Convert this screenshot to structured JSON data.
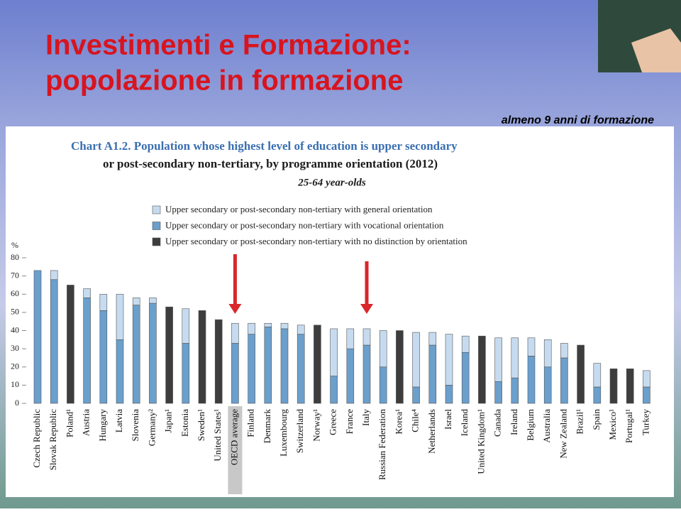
{
  "slide": {
    "title_lines": [
      "Investimenti e Formazione:",
      "popolazione in formazione"
    ],
    "note": "almeno 9 anni di formazione"
  },
  "chart_data": {
    "type": "bar",
    "stacked": true,
    "title_lines": [
      "Chart A1.2. Population whose highest level of education is upper secondary",
      "or post-secondary non-tertiary, by programme orientation (2012)"
    ],
    "subtitle": "25-64 year-olds",
    "y_label": "%",
    "categories": [
      "Czech Republic",
      "Slovak Republic",
      "Poland¹",
      "Austria",
      "Hungary",
      "Latvia",
      "Slovenia",
      "Germany²",
      "Japan¹",
      "Estonia",
      "Sweden¹",
      "United States¹",
      "OECD average",
      "Finland",
      "Denmark",
      "Luxembourg",
      "Switzerland",
      "Norway¹",
      "Greece",
      "France",
      "Italy",
      "Russian Federation",
      "Korea¹",
      "Chile⁴",
      "Netherlands",
      "Israel",
      "Iceland",
      "United Kingdom¹",
      "Canada",
      "Ireland",
      "Belgium",
      "Australia",
      "New Zealand",
      "Brazil¹",
      "Spain",
      "Mexico¹",
      "Portugal¹",
      "Turkey"
    ],
    "series": [
      {
        "name": "Upper secondary or post-secondary non-tertiary with general orientation",
        "color": "#c6dbef",
        "values": [
          0,
          5,
          null,
          5,
          9,
          25,
          4,
          3,
          null,
          19,
          null,
          null,
          11,
          6,
          2,
          3,
          5,
          null,
          26,
          11,
          9,
          20,
          null,
          30,
          7,
          28,
          9,
          null,
          24,
          22,
          10,
          15,
          8,
          null,
          13,
          null,
          null,
          9
        ]
      },
      {
        "name": "Upper secondary or post-secondary non-tertiary with vocational orientation",
        "color": "#6b9fcc",
        "values": [
          73,
          68,
          null,
          58,
          51,
          35,
          54,
          55,
          null,
          33,
          null,
          null,
          33,
          38,
          42,
          41,
          38,
          null,
          15,
          30,
          32,
          20,
          null,
          9,
          32,
          10,
          28,
          null,
          12,
          14,
          26,
          20,
          25,
          null,
          9,
          null,
          null,
          9
        ]
      },
      {
        "name": "Upper secondary or post-secondary non-tertiary with no distinction by orientation",
        "color": "#3d3d3d",
        "values": [
          null,
          null,
          65,
          null,
          null,
          null,
          null,
          null,
          53,
          null,
          51,
          46,
          null,
          null,
          null,
          null,
          null,
          43,
          null,
          null,
          null,
          null,
          40,
          null,
          null,
          null,
          null,
          37,
          null,
          null,
          null,
          null,
          null,
          32,
          null,
          19,
          19,
          null
        ]
      }
    ],
    "ylim": [
      0,
      80
    ],
    "yticks": [
      0,
      10,
      20,
      30,
      40,
      50,
      60,
      70,
      80
    ]
  }
}
